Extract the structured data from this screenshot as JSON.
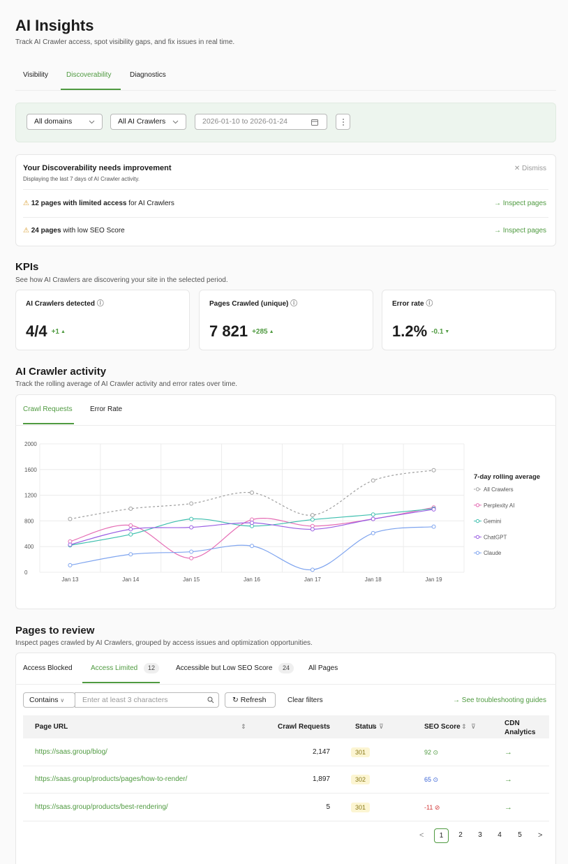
{
  "header": {
    "title": "AI Insights",
    "subtitle": "Track AI Crawler access, spot visibility gaps, and fix issues in real time."
  },
  "tabs": [
    "Visibility",
    "Discoverability",
    "Diagnostics"
  ],
  "filters": {
    "domain": "All domains",
    "crawler": "All AI Crawlers",
    "date_range": "2026-01-10 to 2026-01-24"
  },
  "alert": {
    "title": "Your Discoverability needs improvement",
    "subtitle": "Displaying the last 7 days of AI Crawler activity.",
    "dismiss": "Dismiss",
    "items": [
      {
        "emphasis": "12 pages with limited access",
        "text": "for AI Crawlers",
        "link": "Inspect pages"
      },
      {
        "emphasis": "24 pages",
        "text": "with low SEO Score",
        "link": "Inspect pages"
      }
    ]
  },
  "kpis": {
    "title": "KPIs",
    "subtitle": "See how AI Crawlers are discovering your site in the selected period.",
    "cards": [
      {
        "label": "AI Crawlers detected",
        "value": "4/4",
        "delta": "+1",
        "trend": "up"
      },
      {
        "label": "Pages Crawled (unique)",
        "value": "7 821",
        "delta": "+285",
        "trend": "up"
      },
      {
        "label": "Error rate",
        "value": "1.2%",
        "delta": "-0.1",
        "trend": "down"
      }
    ]
  },
  "chart_data": {
    "type": "line",
    "title": "AI Crawler activity",
    "subtitle": "Track the rolling average of AI Crawler activity and error rates over time.",
    "tabs": [
      "Crawl Requests",
      "Error Rate"
    ],
    "legend_title": "7-day rolling average",
    "legend": "right",
    "grid": true,
    "categories": [
      "Jan 13",
      "Jan 14",
      "Jan 15",
      "Jan 16",
      "Jan 17",
      "Jan 18",
      "Jan 19"
    ],
    "ylim": [
      0,
      2000
    ],
    "yticks": [
      0,
      400,
      800,
      1200,
      1600,
      2000
    ],
    "series": [
      {
        "name": "All Crawlers",
        "color": "#9e9e9e",
        "dashed": true,
        "values": [
          830,
          990,
          1070,
          1240,
          890,
          1430,
          1590
        ]
      },
      {
        "name": "Perplexity AI",
        "color": "#e56cb4",
        "values": [
          480,
          730,
          220,
          820,
          720,
          830,
          1010
        ]
      },
      {
        "name": "Gemini",
        "color": "#3dbfae",
        "values": [
          420,
          590,
          830,
          720,
          820,
          900,
          990
        ]
      },
      {
        "name": "ChatGPT",
        "color": "#9a5ee3",
        "values": [
          430,
          670,
          700,
          770,
          670,
          830,
          980
        ]
      },
      {
        "name": "Claude",
        "color": "#7ea4ef",
        "values": [
          110,
          280,
          320,
          410,
          40,
          610,
          710
        ]
      }
    ]
  },
  "pages": {
    "title": "Pages to review",
    "subtitle": "Inspect pages crawled by AI Crawlers, grouped by access issues and optimization opportunities.",
    "tabs": [
      {
        "label": "Access Blocked"
      },
      {
        "label": "Access Limited",
        "count": "12"
      },
      {
        "label": "Accessible but Low SEO Score",
        "count": "24"
      },
      {
        "label": "All Pages"
      }
    ],
    "toolbar": {
      "match": "Contains",
      "placeholder": "Enter at least 3 characters",
      "refresh": "Refresh",
      "clear": "Clear filters",
      "guides": "See troubleshooting guides"
    },
    "table": {
      "columns": [
        "Page URL",
        "Crawl Requests",
        "Status",
        "SEO Score",
        "CDN Analytics"
      ],
      "rows": [
        [
          "https://saas.group/blog/",
          "2,147",
          "301",
          "92"
        ],
        [
          "https://saas.group/products/pages/how-to-render/",
          "1,897",
          "302",
          "65"
        ],
        [
          "https://saas.group/products/best-rendering/",
          "5",
          "301",
          "-11"
        ]
      ]
    },
    "pagination": [
      "1",
      "2",
      "3",
      "4",
      "5"
    ]
  }
}
